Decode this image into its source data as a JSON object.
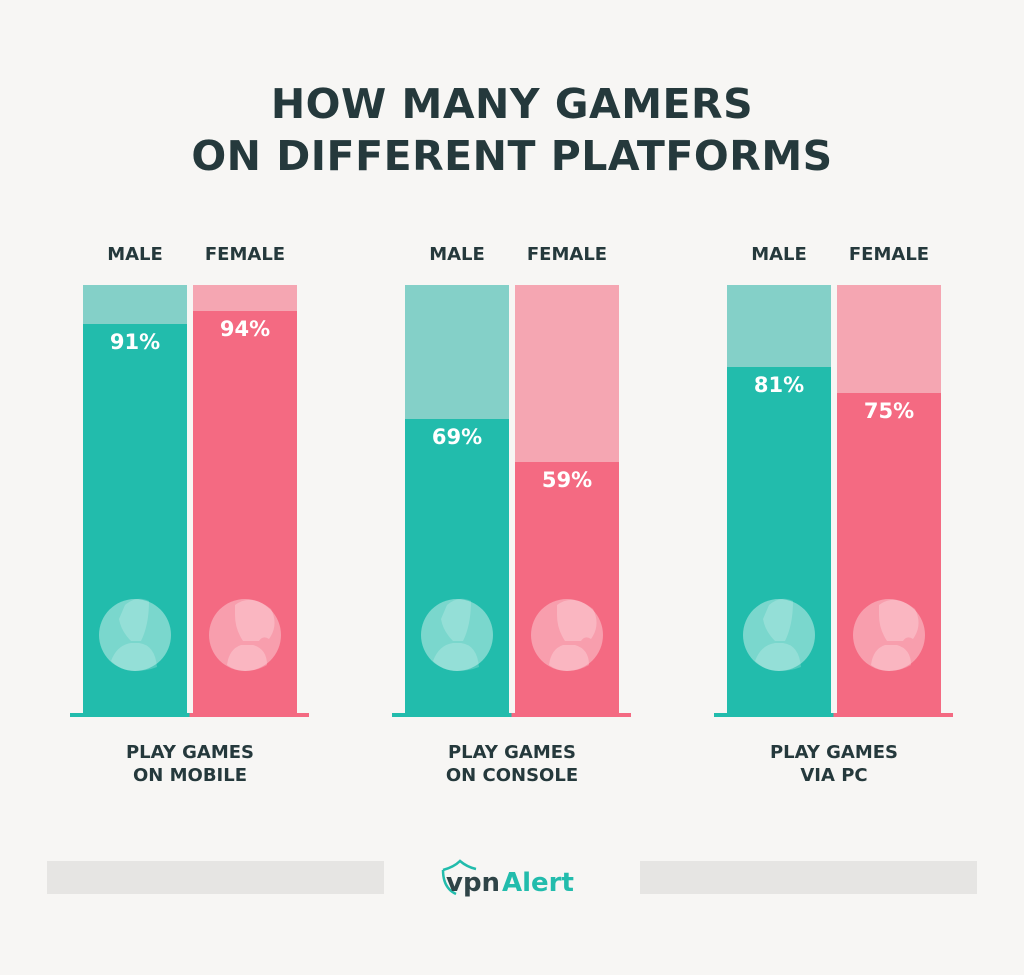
{
  "title_lines": [
    "HOW MANY GAMERS",
    "ON DIFFERENT PLATFORMS"
  ],
  "chart_data": {
    "type": "bar",
    "title": "HOW MANY GAMERS ON DIFFERENT PLATFORMS",
    "categories": [
      "PLAY GAMES ON MOBILE",
      "PLAY GAMES ON CONSOLE",
      "PLAY GAMES VIA PC"
    ],
    "category_lines": [
      [
        "PLAY GAMES",
        "ON MOBILE"
      ],
      [
        "PLAY GAMES",
        "ON CONSOLE"
      ],
      [
        "PLAY GAMES",
        "VIA PC"
      ]
    ],
    "series": [
      {
        "name": "MALE",
        "values": [
          91,
          69,
          81
        ],
        "labels": [
          "91%",
          "69%",
          "81%"
        ],
        "color": "#22bcac",
        "track_color": "#84d0c8"
      },
      {
        "name": "FEMALE",
        "values": [
          94,
          59,
          75
        ],
        "labels": [
          "94%",
          "59%",
          "75%"
        ],
        "color": "#f46a82",
        "track_color": "#f5a6b2"
      }
    ],
    "ylim": [
      0,
      100
    ],
    "grid": false,
    "legend": "none"
  },
  "brand": {
    "name_dark": "vpn",
    "name_accent": "Alert",
    "dark": "#2f4447",
    "accent": "#22bcac"
  }
}
